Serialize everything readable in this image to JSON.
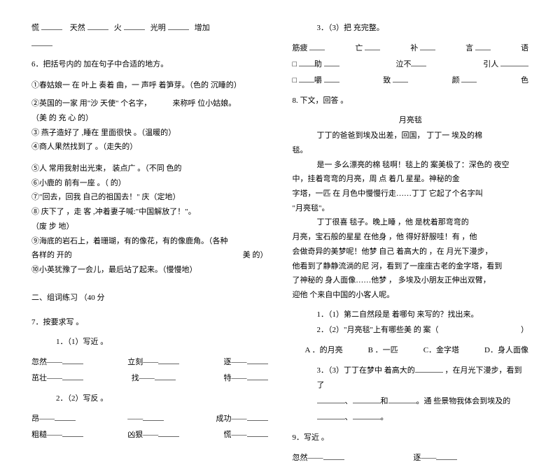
{
  "left": {
    "top_line_a": "慌",
    "top_line_b": "天然",
    "top_line_c": "火",
    "top_line_d": "光明",
    "top_line_e": "增加",
    "q6_title": "6．把括号内的 加在句子中合适的地方。",
    "q6_1": "①春姑娘一 在 叶上 奏着 曲，一 声呼 着笋芽。（色的 沉睡的）",
    "q6_2a": "②英国的一家 用\"沙 天使\" 个名字，",
    "q6_2b": "来称呼 位小姑娘。",
    "q6_2c": "（美 的     充 心 的）",
    "q6_3": "③ 燕子造好了 ,睡在 里面很快 。（温暖的）",
    "q6_4": "④商人果然找到了 。（走失的）",
    "q6_5": "⑤人 常用我射出光束， 装点广 。（不同 色的",
    "q6_6": "⑥小鹿的 前有一座 。（  的）",
    "q6_7": "⑦\"回去，回我 自己的祖国去！\" 庆（定地）",
    "q6_8": "⑧ 庆下了 ，走 客 ,冲着妻子喊:\"中国解放了！\"。",
    "q6_8b": "（废 步       地）",
    "q6_9": "⑨海底的岩石上，着珊瑚，有的像花，有的像鹿角。（各种",
    "q6_9b": "各样的      开的",
    "q6_9c": "美 的）",
    "q6_10": "⑩小英犹豫了一会儿，最后站了起来。（慢慢地）",
    "section2": "二、组词练习 （40 分",
    "q7_title": "7．按要求写 。",
    "q7_1": "1．（1）写近 。",
    "q7_1a": "忽然——",
    "q7_1b": "立刻——",
    "q7_1c": "逐——",
    "q7_1d": "茁壮——",
    "q7_1e": "找——",
    "q7_1f": "特——",
    "q7_2": "2．（2）写反 。",
    "q7_2a": "昂——",
    "q7_2b": "——",
    "q7_2c": "成功——",
    "q7_2d": "粗糙——",
    "q7_2e": "凶狠——",
    "q7_2f": "慌——"
  },
  "right": {
    "q7_3": "3．（3）把  充完整。",
    "r1a": "筋疲",
    "r1b": "亡",
    "r1c": "补",
    "r1d": "言",
    "r1e": "语",
    "r2a": "助",
    "r2b": "泣不",
    "r2c": "引人",
    "r3a": "嚼",
    "r3b": "致",
    "r3c": "颜",
    "r3d": "色",
    "q8_title": "8.    下文，回答 。",
    "story_title": "月亮毯",
    "p1": "丁丁的爸爸到埃及出差，回国，  丁丁一 埃及的棉",
    "p1b": "毯。",
    "p2": "是一 多么漂亮的棉 毯啊！毯上的 案美极了：深色的 夜空",
    "p2b": "中，挂着弯弯的月亮，周 点 着几 星星。神秘的金",
    "p2c": "字塔，一匹 在 月色中慢慢行走……丁丁 它起了个名字叫",
    "p2d": "\"月亮毯\"。",
    "p3": "丁丁很喜 毯子。晚上睡 ，他 是枕着那弯弯的",
    "p3b": "月亮，宝石般的星星 在他身 ，他 得好舒服哇！有 ，他",
    "p3c": "会做奇异的美梦呢！他梦 自己 着高大的 ，在 月光下漫步，",
    "p3d": "他看到了静静流淌的尼 河，看到了一座座古老的金字塔，看到",
    "p3e": "了神秘的 身人面像……他梦 ， 多埃及小朋友正伸出双臂，",
    "p3f": "迎他 个来自中国的小客人呢。",
    "q1": "1．（1）第二自然段是 着哪句 来写的？找出来。",
    "q2a": "2．（2）\"月亮毯\"上有哪些美 的 案（",
    "q2b": "）",
    "optA": "A ．的月亮",
    "optB": "B ．一匹",
    "optC": "C．金字塔",
    "optD": "D．身人面像",
    "q3a": "3．（3）丁丁在梦中 着高大的",
    "q3b": "，在月光下漫步，看到了",
    "q3c": "、",
    "q3d": "和",
    "q3e": "。通 些景物我体会到埃及的",
    "q3f": "、",
    "q3g": "。",
    "q9_title": "9．写近 。",
    "q9a": "忽然——",
    "q9b": "逐——"
  }
}
